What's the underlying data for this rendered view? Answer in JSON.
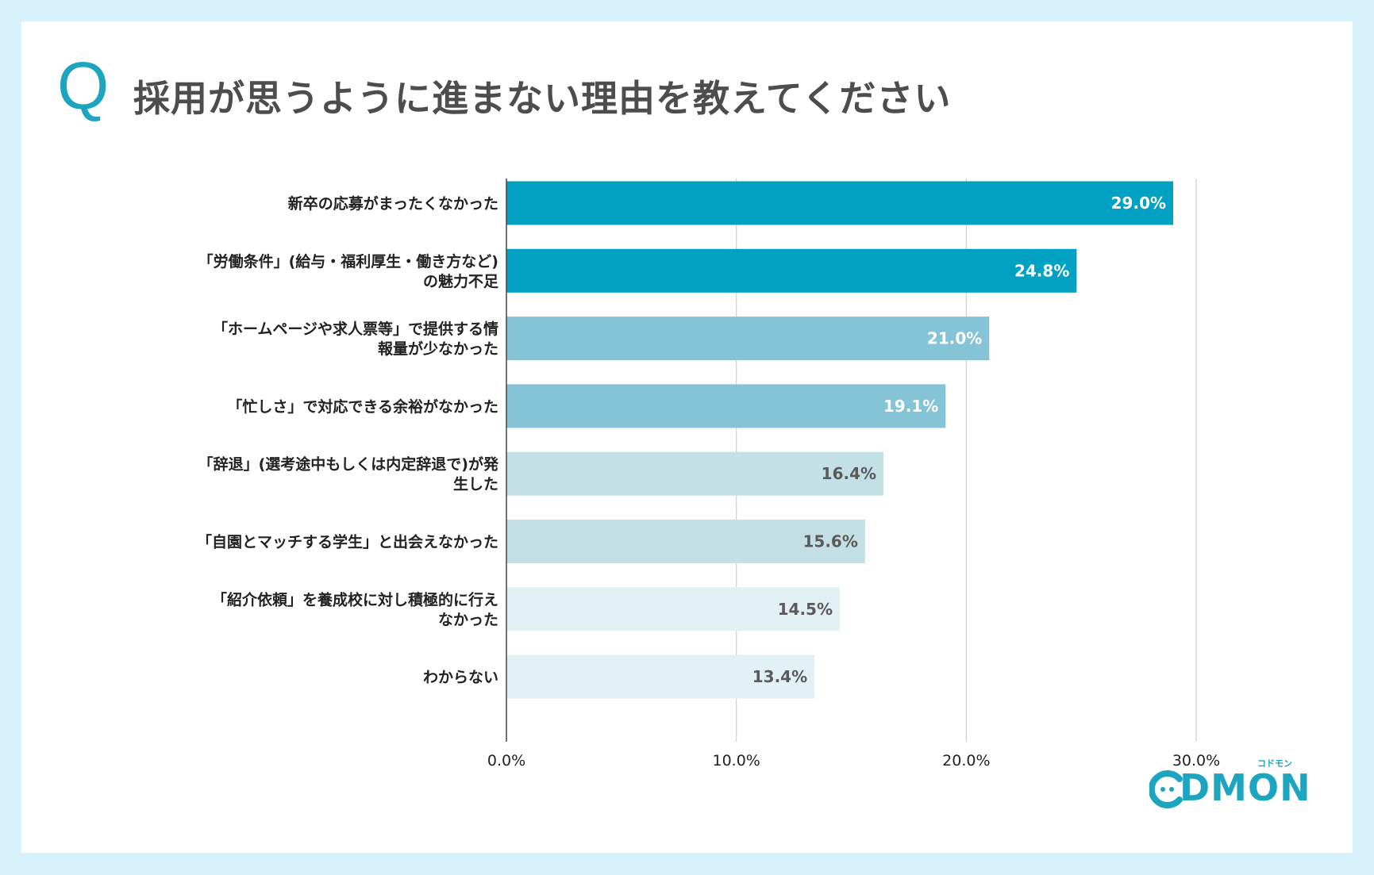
{
  "title": "採用が思うように進まない理由を教えてください",
  "q_mark": "Q",
  "logo": {
    "text": "DMON",
    "sub": "コドモン"
  },
  "chart_data": {
    "type": "bar",
    "orientation": "horizontal",
    "categories": [
      [
        "新卒の応募がまったくなかった"
      ],
      [
        "「労働条件」(給与・福利厚生・働き方など)",
        "の魅力不足"
      ],
      [
        "「ホームページや求人票等」で提供する情",
        "報量が少なかった"
      ],
      [
        "「忙しさ」で対応できる余裕がなかった"
      ],
      [
        "「辞退」(選考途中もしくは内定辞退で)が発",
        "生した"
      ],
      [
        "「自園とマッチする学生」と出会えなかった"
      ],
      [
        "「紹介依頼」を養成校に対し積極的に行え",
        "なかった"
      ],
      [
        "わからない"
      ]
    ],
    "values": [
      29.0,
      24.8,
      21.0,
      19.1,
      16.4,
      15.6,
      14.5,
      13.4
    ],
    "value_labels": [
      "29.0%",
      "24.8%",
      "21.0%",
      "19.1%",
      "16.4%",
      "15.6%",
      "14.5%",
      "13.4%"
    ],
    "bar_colors": [
      "#00a1c2",
      "#00a1c2",
      "#84c4d6",
      "#84c4d6",
      "#c3e0e7",
      "#c3e0e7",
      "#e2f1f4",
      "#e2f1f4"
    ],
    "label_colors": [
      "#ffffff",
      "#ffffff",
      "#ffffff",
      "#ffffff",
      "#5a5a5a",
      "#5a5a5a",
      "#5a5a5a",
      "#5a5a5a"
    ],
    "xlim": [
      0,
      30
    ],
    "xticks": [
      0,
      10,
      20,
      30
    ],
    "xtick_labels": [
      "0.0%",
      "10.0%",
      "20.0%",
      "30.0%"
    ],
    "grid": true
  }
}
